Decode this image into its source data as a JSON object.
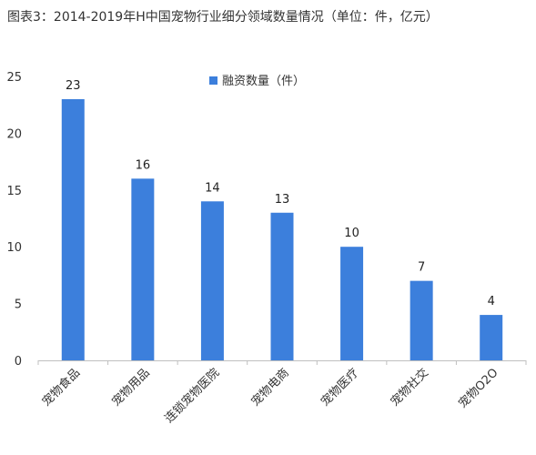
{
  "header": {
    "title": "图表3：2014-2019年H中国宠物行业细分领域数量情况（单位：件，亿元）"
  },
  "chart_data": {
    "type": "bar",
    "categories": [
      "宠物食品",
      "宠物用品",
      "连锁宠物医院",
      "宠物电商",
      "宠物医疗",
      "宠物社交",
      "宠物O2O"
    ],
    "series": [
      {
        "name": "融资数量（件）",
        "values": [
          23,
          16,
          14,
          13,
          10,
          7,
          4
        ],
        "color": "#3c7fdc"
      }
    ],
    "yticks": [
      0,
      5,
      10,
      15,
      20,
      25
    ],
    "ylim": [
      0,
      25
    ],
    "legend_position": "top-center",
    "grid": false
  }
}
